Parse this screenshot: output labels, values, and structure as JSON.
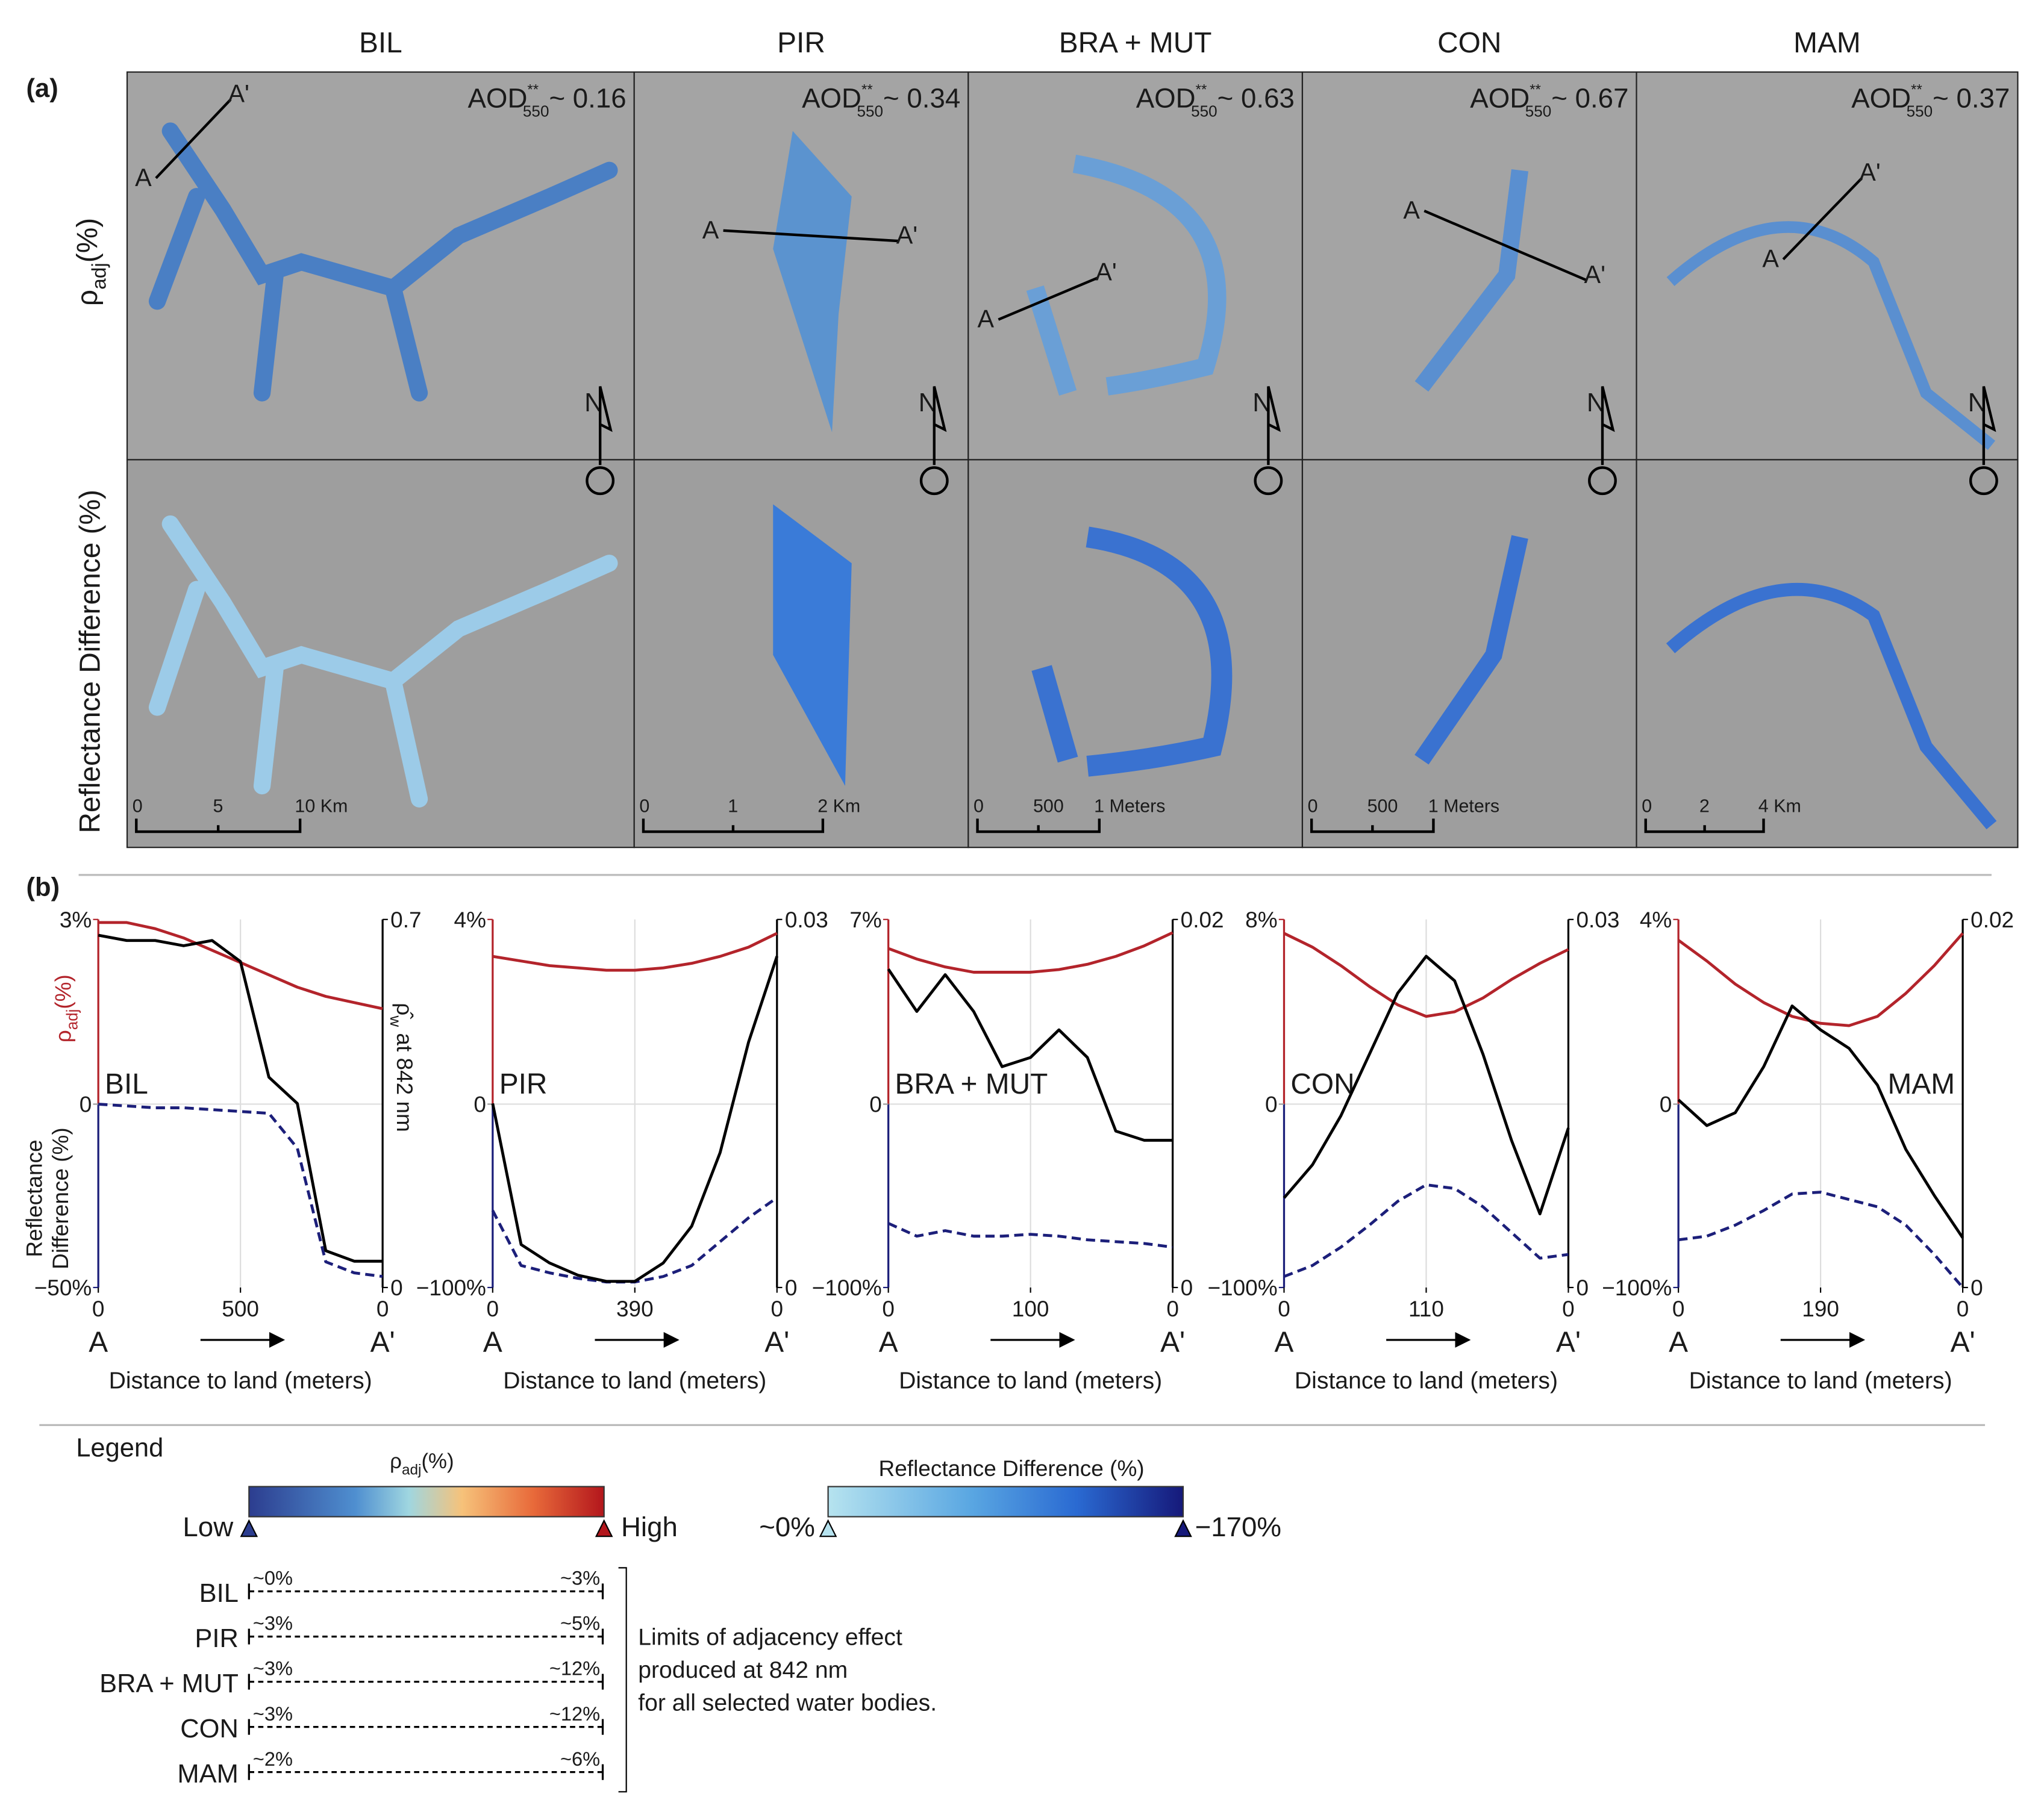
{
  "maps": {
    "panel_label": "(a)",
    "row_labels": [
      {
        "symbol": "ρ",
        "sub": "adj",
        "unit": "(%)"
      },
      "Reflectance Difference (%)"
    ],
    "aod": {
      "text": "AOD",
      "sup": "**",
      "sub": "550"
    },
    "north": "N",
    "columns": [
      {
        "title": "BIL",
        "aod_value": "~ 0.16",
        "transect": [
          "A",
          "A'"
        ],
        "scale": [
          "0",
          "5",
          "10 Km"
        ]
      },
      {
        "title": "PIR",
        "aod_value": "~ 0.34",
        "transect": [
          "A",
          "A'"
        ],
        "scale": [
          "0",
          "1",
          "2 Km"
        ]
      },
      {
        "title": "BRA + MUT",
        "aod_value": "~ 0.63",
        "transect": [
          "A",
          "A'"
        ],
        "scale": [
          "0",
          "500",
          "1 Meters"
        ]
      },
      {
        "title": "CON",
        "aod_value": "~ 0.67",
        "transect": [
          "A",
          "A'"
        ],
        "scale": [
          "0",
          "500",
          "1 Meters"
        ]
      },
      {
        "title": "MAM",
        "aod_value": "~ 0.37",
        "transect": [
          "A",
          "A'"
        ],
        "scale": [
          "0",
          "2",
          "4 Km"
        ]
      }
    ]
  },
  "profiles": {
    "panel_label": "(b)",
    "ylabel": {
      "symbol": "ρ",
      "sub": "adj",
      "unit": "(%)"
    },
    "ylabel2": [
      "Reflectance",
      "Difference (%)"
    ],
    "y2label": {
      "symbol": "ρ̂",
      "sub": "w",
      "rest": " at 842 nm"
    }
  },
  "chart_data": [
    {
      "type": "line",
      "title": "BIL",
      "title_position": "left",
      "xlabel": "Distance to land (meters)",
      "x_ends": [
        "A",
        "A'"
      ],
      "x": [
        0,
        100,
        200,
        300,
        400,
        500,
        600,
        700,
        800,
        900,
        1000
      ],
      "xlim": [
        0,
        1000
      ],
      "xticks": [
        0,
        500,
        {
          "value": 1000,
          "label": "0"
        }
      ],
      "ylim": [
        -50,
        3
      ],
      "yticks": [
        {
          "value": -50,
          "label": "−50%"
        },
        0,
        {
          "value": 3,
          "label": "3%"
        }
      ],
      "y2lim": [
        0,
        0.7
      ],
      "y2ticks": [
        0,
        0.7
      ],
      "grid": true,
      "series": [
        {
          "color": "#b3242b",
          "dash": false,
          "axis": "y",
          "values": [
            2.95,
            2.95,
            2.85,
            2.7,
            2.5,
            2.3,
            2.1,
            1.9,
            1.75,
            1.65,
            1.55
          ]
        },
        {
          "color": "#1c1f7a",
          "dash": true,
          "axis": "y",
          "values": [
            0,
            -0.5,
            -1,
            -1,
            -1.5,
            -2,
            -2.5,
            -12,
            -43,
            -46,
            -47
          ]
        },
        {
          "color": "#000000",
          "dash": false,
          "axis": "y2",
          "values": [
            0.67,
            0.66,
            0.66,
            0.65,
            0.66,
            0.62,
            0.4,
            0.35,
            0.07,
            0.05,
            0.05
          ]
        }
      ]
    },
    {
      "type": "line",
      "title": "PIR",
      "title_position": "left",
      "xlabel": "Distance to land (meters)",
      "x_ends": [
        "A",
        "A'"
      ],
      "x": [
        0,
        78,
        156,
        234,
        312,
        390,
        468,
        546,
        624,
        702,
        780
      ],
      "xlim": [
        0,
        780
      ],
      "xticks": [
        0,
        390,
        {
          "value": 780,
          "label": "0"
        }
      ],
      "ylim": [
        -100,
        4
      ],
      "yticks": [
        {
          "value": -100,
          "label": "−100%"
        },
        0,
        {
          "value": 4,
          "label": "4%"
        }
      ],
      "y2lim": [
        0,
        0.03
      ],
      "y2ticks": [
        0,
        0.03
      ],
      "grid": true,
      "series": [
        {
          "color": "#b3242b",
          "dash": false,
          "axis": "y",
          "values": [
            3.2,
            3.1,
            3.0,
            2.95,
            2.9,
            2.9,
            2.95,
            3.05,
            3.2,
            3.4,
            3.7
          ]
        },
        {
          "color": "#1c1f7a",
          "dash": true,
          "axis": "y",
          "values": [
            -58,
            -88,
            -92,
            -95,
            -97,
            -97,
            -94,
            -88,
            -75,
            -62,
            -51
          ]
        },
        {
          "color": "#000000",
          "dash": false,
          "axis": "y2",
          "values": [
            0.015,
            0.0035,
            0.002,
            0.001,
            0.0005,
            0.0005,
            0.002,
            0.005,
            0.011,
            0.02,
            0.027
          ]
        }
      ]
    },
    {
      "type": "line",
      "title": "BRA + MUT",
      "title_position": "left",
      "xlabel": "Distance to land (meters)",
      "x_ends": [
        "A",
        "A'"
      ],
      "x": [
        0,
        20,
        40,
        60,
        80,
        100,
        120,
        140,
        160,
        180,
        200
      ],
      "xlim": [
        0,
        200
      ],
      "xticks": [
        0,
        100,
        {
          "value": 200,
          "label": "0"
        }
      ],
      "ylim": [
        -100,
        7
      ],
      "yticks": [
        {
          "value": -100,
          "label": "−100%"
        },
        0,
        {
          "value": 7,
          "label": "7%"
        }
      ],
      "y2lim": [
        0,
        0.02
      ],
      "y2ticks": [
        0,
        0.02
      ],
      "grid": true,
      "series": [
        {
          "color": "#b3242b",
          "dash": false,
          "axis": "y",
          "values": [
            5.9,
            5.5,
            5.2,
            5.0,
            5.0,
            5.0,
            5.1,
            5.3,
            5.6,
            6.0,
            6.5
          ]
        },
        {
          "color": "#1c1f7a",
          "dash": true,
          "axis": "y",
          "values": [
            -65,
            -72,
            -69,
            -72,
            -72,
            -71,
            -72,
            -74,
            -75,
            -76,
            -78
          ]
        },
        {
          "color": "#000000",
          "dash": false,
          "axis": "y2",
          "values": [
            0.0173,
            0.015,
            0.017,
            0.015,
            0.012,
            0.0125,
            0.014,
            0.0125,
            0.0085,
            0.008,
            0.008
          ]
        }
      ]
    },
    {
      "type": "line",
      "title": "CON",
      "title_position": "left",
      "xlabel": "Distance to land (meters)",
      "x_ends": [
        "A",
        "A'"
      ],
      "x": [
        0,
        22,
        44,
        66,
        88,
        110,
        132,
        154,
        176,
        198,
        220
      ],
      "xlim": [
        0,
        220
      ],
      "xticks": [
        0,
        110,
        {
          "value": 220,
          "label": "0"
        }
      ],
      "ylim": [
        -100,
        8
      ],
      "yticks": [
        {
          "value": -100,
          "label": "−100%"
        },
        0,
        {
          "value": 8,
          "label": "8%"
        }
      ],
      "y2lim": [
        0,
        0.03
      ],
      "y2ticks": [
        0,
        0.03
      ],
      "grid": true,
      "series": [
        {
          "color": "#b3242b",
          "dash": false,
          "axis": "y",
          "values": [
            7.4,
            6.8,
            6.0,
            5.1,
            4.3,
            3.8,
            4.0,
            4.6,
            5.4,
            6.1,
            6.7
          ]
        },
        {
          "color": "#1c1f7a",
          "dash": true,
          "axis": "y",
          "values": [
            -94,
            -88,
            -78,
            -66,
            -53,
            -44,
            -46,
            -56,
            -70,
            -84,
            -82
          ]
        },
        {
          "color": "#000000",
          "dash": false,
          "axis": "y2",
          "values": [
            0.0073,
            0.01,
            0.014,
            0.019,
            0.024,
            0.027,
            0.025,
            0.019,
            0.012,
            0.006,
            0.013
          ]
        }
      ]
    },
    {
      "type": "line",
      "title": "MAM",
      "title_position": "right",
      "xlabel": "Distance to land (meters)",
      "x_ends": [
        "A",
        "A'"
      ],
      "x": [
        0,
        38,
        76,
        114,
        152,
        190,
        228,
        266,
        304,
        342,
        380
      ],
      "xlim": [
        0,
        380
      ],
      "xticks": [
        0,
        190,
        {
          "value": 380,
          "label": "0"
        }
      ],
      "ylim": [
        -100,
        4
      ],
      "yticks": [
        {
          "value": -100,
          "label": "−100%"
        },
        0,
        {
          "value": 4,
          "label": "4%"
        }
      ],
      "y2lim": [
        0,
        0.02
      ],
      "y2ticks": [
        0,
        0.02
      ],
      "grid": true,
      "series": [
        {
          "color": "#b3242b",
          "dash": false,
          "axis": "y",
          "values": [
            3.55,
            3.1,
            2.6,
            2.2,
            1.9,
            1.75,
            1.7,
            1.9,
            2.4,
            3.0,
            3.7
          ]
        },
        {
          "color": "#1c1f7a",
          "dash": true,
          "axis": "y",
          "values": [
            -74,
            -72,
            -66,
            -58,
            -49,
            -48,
            -52,
            -56,
            -66,
            -82,
            -100
          ]
        },
        {
          "color": "#000000",
          "dash": false,
          "axis": "y2",
          "values": [
            0.0102,
            0.0088,
            0.0095,
            0.012,
            0.0153,
            0.014,
            0.013,
            0.011,
            0.0075,
            0.005,
            0.0027
          ]
        }
      ]
    }
  ],
  "legend": {
    "title": "Legend",
    "colorbar1": {
      "label": {
        "symbol": "ρ",
        "sub": "adj",
        "unit": "(%)"
      },
      "low": "Low",
      "high": "High"
    },
    "colorbar2": {
      "label": "Reflectance Difference (%)",
      "low": "~0%",
      "high": "−170%"
    },
    "limits": [
      {
        "name": "BIL",
        "low": "~0%",
        "high": "~3%"
      },
      {
        "name": "PIR",
        "low": "~3%",
        "high": "~5%"
      },
      {
        "name": "BRA + MUT",
        "low": "~3%",
        "high": "~12%"
      },
      {
        "name": "CON",
        "low": "~3%",
        "high": "~12%"
      },
      {
        "name": "MAM",
        "low": "~2%",
        "high": "~6%"
      }
    ],
    "note": [
      "Limits of adjacency effect",
      "produced at 842 nm",
      "for all selected water bodies."
    ]
  }
}
